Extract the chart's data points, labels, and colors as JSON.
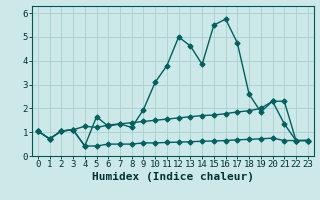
{
  "xlabel": "Humidex (Indice chaleur)",
  "background_color": "#cce8e8",
  "grid_color": "#aad0cc",
  "line_color": "#006060",
  "xlim": [
    -0.5,
    23.5
  ],
  "ylim": [
    0,
    6.3
  ],
  "xticks": [
    0,
    1,
    2,
    3,
    4,
    5,
    6,
    7,
    8,
    9,
    10,
    11,
    12,
    13,
    14,
    15,
    16,
    17,
    18,
    19,
    20,
    21,
    22,
    23
  ],
  "yticks": [
    0,
    1,
    2,
    3,
    4,
    5,
    6
  ],
  "series1_x": [
    0,
    1,
    2,
    3,
    4,
    5,
    6,
    7,
    8,
    9,
    10,
    11,
    12,
    13,
    14,
    15,
    16,
    17,
    18,
    19,
    20,
    21,
    22,
    23
  ],
  "series1_y": [
    1.05,
    0.72,
    1.05,
    1.1,
    0.42,
    1.65,
    1.25,
    1.35,
    1.2,
    1.95,
    3.1,
    3.8,
    5.0,
    4.62,
    3.85,
    5.5,
    5.75,
    4.75,
    2.6,
    1.85,
    2.3,
    1.35,
    0.65,
    0.65
  ],
  "series2_x": [
    0,
    1,
    2,
    3,
    4,
    5,
    6,
    7,
    8,
    9,
    10,
    11,
    12,
    13,
    14,
    15,
    16,
    17,
    18,
    19,
    20,
    21,
    22,
    23
  ],
  "series2_y": [
    1.05,
    0.72,
    1.05,
    1.1,
    1.25,
    1.2,
    1.3,
    1.35,
    1.4,
    1.45,
    1.5,
    1.55,
    1.6,
    1.65,
    1.7,
    1.72,
    1.78,
    1.85,
    1.9,
    2.0,
    2.3,
    2.3,
    0.65,
    0.65
  ],
  "series3_x": [
    0,
    1,
    2,
    3,
    4,
    5,
    6,
    7,
    8,
    9,
    10,
    11,
    12,
    13,
    14,
    15,
    16,
    17,
    18,
    19,
    20,
    21,
    22,
    23
  ],
  "series3_y": [
    1.05,
    0.72,
    1.05,
    1.1,
    0.42,
    0.42,
    0.5,
    0.5,
    0.5,
    0.55,
    0.55,
    0.57,
    0.58,
    0.6,
    0.62,
    0.63,
    0.65,
    0.68,
    0.7,
    0.72,
    0.75,
    0.65,
    0.65,
    0.65
  ],
  "marker": "D",
  "marker_size": 2.5,
  "line_width": 1.0,
  "font_family": "monospace",
  "xlabel_fontsize": 8,
  "tick_fontsize": 6.5
}
